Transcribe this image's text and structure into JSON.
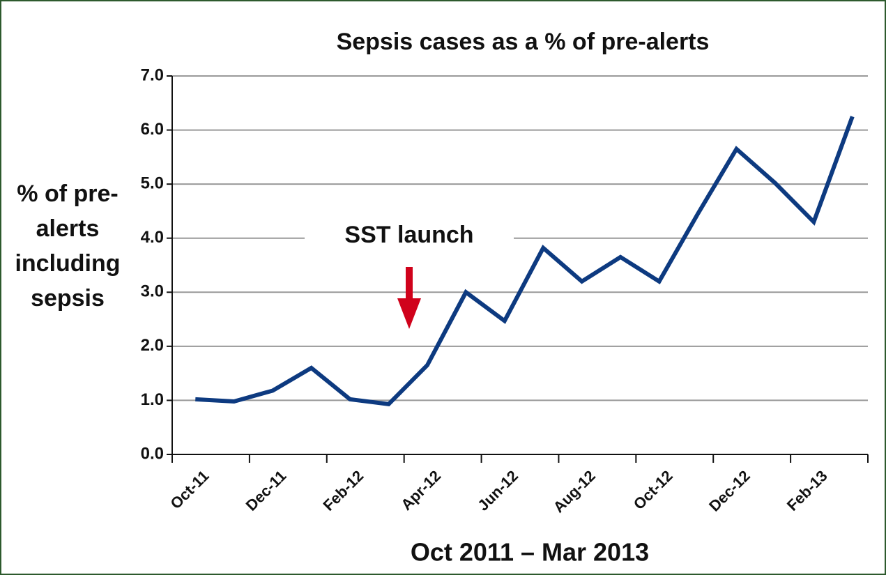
{
  "chart_data": {
    "type": "line",
    "title": "Sepsis cases as a % of pre-alerts",
    "xlabel": "Oct 2011 – Mar 2013",
    "ylabel_lines": [
      "% of pre-",
      "alerts",
      "including",
      "sepsis"
    ],
    "annotation": "SST launch",
    "categories": [
      "Oct-11",
      null,
      "Dec-11",
      null,
      "Feb-12",
      null,
      "Apr-12",
      null,
      "Jun-12",
      null,
      "Aug-12",
      null,
      "Oct-12",
      null,
      "Dec-12",
      null,
      "Feb-13",
      null
    ],
    "series": [
      {
        "name": "Sepsis cases",
        "color": "#0d3a80",
        "values": [
          1.02,
          0.98,
          1.18,
          1.6,
          1.02,
          0.93,
          1.65,
          3.0,
          2.47,
          3.82,
          3.2,
          3.65,
          3.2,
          4.45,
          5.65,
          5.02,
          4.3,
          6.25
        ]
      }
    ],
    "ylim": [
      0,
      7
    ],
    "yticks": [
      {
        "value": 0,
        "label": "0.0"
      },
      {
        "value": 1,
        "label": "1.0"
      },
      {
        "value": 2,
        "label": "2.0"
      },
      {
        "value": 3,
        "label": "3.0"
      },
      {
        "value": 4,
        "label": "4.0"
      },
      {
        "value": 5,
        "label": "5.0"
      },
      {
        "value": 6,
        "label": "6.0"
      },
      {
        "value": 7,
        "label": "7.0"
      }
    ],
    "grid": true
  }
}
